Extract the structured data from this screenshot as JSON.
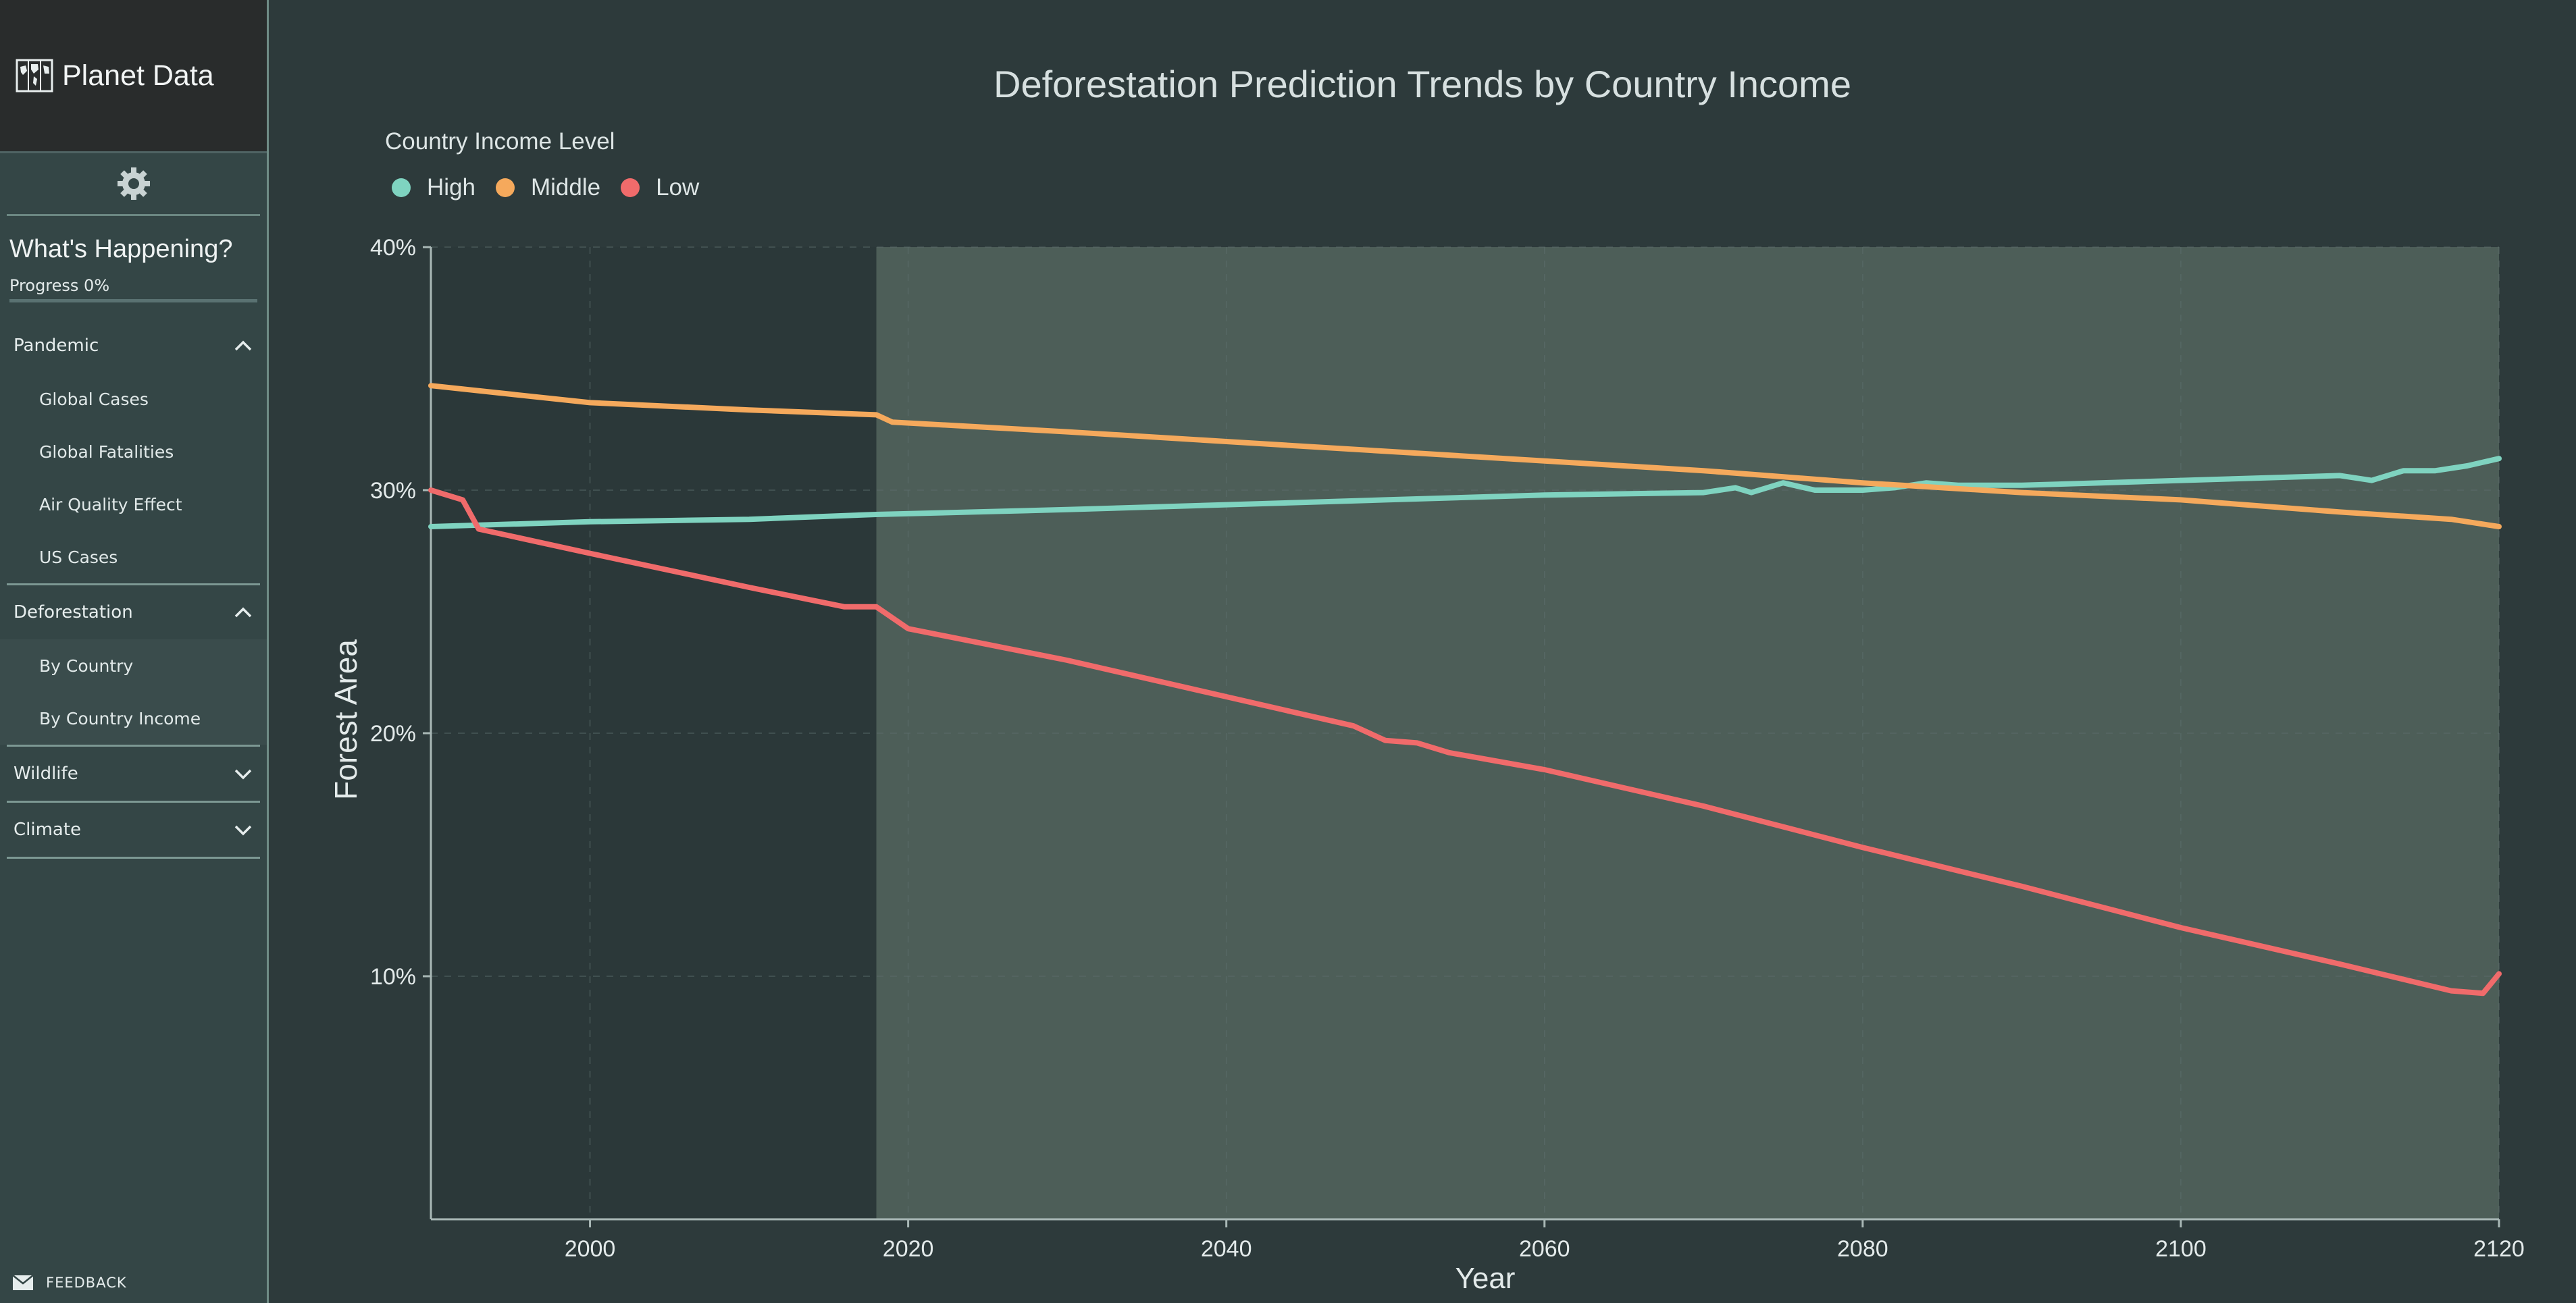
{
  "app": {
    "name": "Planet Data"
  },
  "sidebar": {
    "heading": "What's Happening?",
    "progress_label": "Progress 0%",
    "progress_value": 0,
    "sections": [
      {
        "label": "Pandemic",
        "expanded": true,
        "items": [
          "Global Cases",
          "Global Fatalities",
          "Air Quality Effect",
          "US Cases"
        ]
      },
      {
        "label": "Deforestation",
        "expanded": true,
        "items": [
          "By Country",
          "By Country Income"
        ]
      },
      {
        "label": "Wildlife",
        "expanded": false,
        "items": []
      },
      {
        "label": "Climate",
        "expanded": false,
        "items": []
      }
    ],
    "feedback_label": "FEEDBACK"
  },
  "colors": {
    "high": "#7fd3c0",
    "middle": "#f5a95c",
    "low": "#f06b6b",
    "forecast_band": "#4d5e58",
    "background": "#2d3a3b"
  },
  "chart_data": {
    "type": "line",
    "title": "Deforestation Prediction Trends by Country Income",
    "legend_title": "Country Income Level",
    "xlabel": "Year",
    "ylabel": "Forest Area",
    "xlim": [
      1990,
      2120
    ],
    "ylim": [
      0,
      40
    ],
    "x_ticks": [
      2000,
      2020,
      2040,
      2060,
      2080,
      2100,
      2120
    ],
    "y_ticks": [
      10,
      20,
      30,
      40
    ],
    "y_tick_labels": [
      "10%",
      "20%",
      "30%",
      "40%"
    ],
    "forecast_range": [
      2018,
      2120
    ],
    "grid": true,
    "legend_placement": "top-left",
    "series": [
      {
        "name": "High",
        "color_key": "high",
        "points": [
          [
            1990,
            28.5
          ],
          [
            2000,
            28.7
          ],
          [
            2010,
            28.8
          ],
          [
            2018,
            29.0
          ],
          [
            2030,
            29.2
          ],
          [
            2040,
            29.4
          ],
          [
            2050,
            29.6
          ],
          [
            2060,
            29.8
          ],
          [
            2070,
            29.9
          ],
          [
            2072,
            30.1
          ],
          [
            2073,
            29.9
          ],
          [
            2075,
            30.3
          ],
          [
            2077,
            30.0
          ],
          [
            2080,
            30.0
          ],
          [
            2082,
            30.1
          ],
          [
            2084,
            30.3
          ],
          [
            2086,
            30.2
          ],
          [
            2090,
            30.2
          ],
          [
            2100,
            30.4
          ],
          [
            2110,
            30.6
          ],
          [
            2112,
            30.4
          ],
          [
            2114,
            30.8
          ],
          [
            2116,
            30.8
          ],
          [
            2118,
            31.0
          ],
          [
            2120,
            31.3
          ]
        ]
      },
      {
        "name": "Middle",
        "color_key": "middle",
        "points": [
          [
            1990,
            34.3
          ],
          [
            2000,
            33.6
          ],
          [
            2010,
            33.3
          ],
          [
            2018,
            33.1
          ],
          [
            2019,
            32.8
          ],
          [
            2030,
            32.4
          ],
          [
            2040,
            32.0
          ],
          [
            2050,
            31.6
          ],
          [
            2060,
            31.2
          ],
          [
            2070,
            30.8
          ],
          [
            2074,
            30.6
          ],
          [
            2080,
            30.3
          ],
          [
            2090,
            29.9
          ],
          [
            2100,
            29.6
          ],
          [
            2110,
            29.1
          ],
          [
            2117,
            28.8
          ],
          [
            2120,
            28.5
          ]
        ]
      },
      {
        "name": "Low",
        "color_key": "low",
        "points": [
          [
            1990,
            30.0
          ],
          [
            1992,
            29.6
          ],
          [
            1993,
            28.4
          ],
          [
            2000,
            27.4
          ],
          [
            2010,
            26.0
          ],
          [
            2016,
            25.2
          ],
          [
            2018,
            25.2
          ],
          [
            2020,
            24.3
          ],
          [
            2030,
            23.0
          ],
          [
            2040,
            21.5
          ],
          [
            2048,
            20.3
          ],
          [
            2050,
            19.7
          ],
          [
            2052,
            19.6
          ],
          [
            2054,
            19.2
          ],
          [
            2060,
            18.5
          ],
          [
            2070,
            17.0
          ],
          [
            2080,
            15.3
          ],
          [
            2090,
            13.7
          ],
          [
            2100,
            12.0
          ],
          [
            2110,
            10.5
          ],
          [
            2117,
            9.4
          ],
          [
            2119,
            9.3
          ],
          [
            2120,
            10.1
          ]
        ]
      }
    ]
  }
}
